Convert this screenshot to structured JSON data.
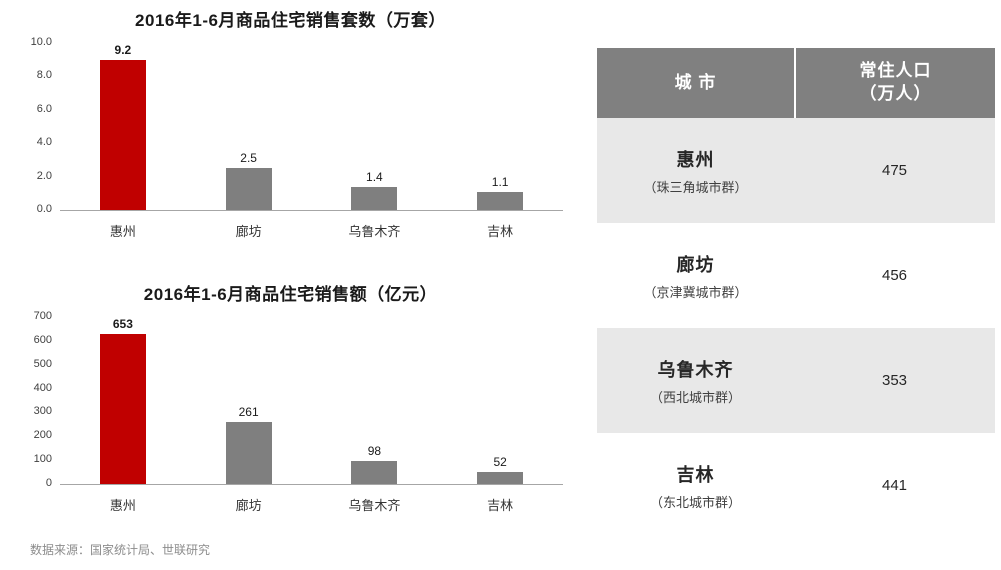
{
  "chart_data": [
    {
      "type": "bar",
      "title": "2016年1-6月商品住宅销售套数（万套）",
      "categories": [
        "惠州",
        "廊坊",
        "乌鲁木齐",
        "吉林"
      ],
      "values": [
        9.2,
        2.5,
        1.4,
        1.1
      ],
      "value_labels": [
        "9.2",
        "2.5",
        "1.4",
        "1.1"
      ],
      "ylim": [
        0,
        10
      ],
      "yticks": [
        "10.0",
        "8.0",
        "6.0",
        "4.0",
        "2.0",
        "0.0"
      ],
      "bar_colors": [
        "#c00000",
        "#7f7f7f",
        "#7f7f7f",
        "#7f7f7f"
      ],
      "highlight_index": 0,
      "grid": false,
      "legend": "none"
    },
    {
      "type": "bar",
      "title": "2016年1-6月商品住宅销售额（亿元）",
      "categories": [
        "惠州",
        "廊坊",
        "乌鲁木齐",
        "吉林"
      ],
      "values": [
        653,
        261,
        98,
        52
      ],
      "value_labels": [
        "653",
        "261",
        "98",
        "52"
      ],
      "ylim": [
        0,
        700
      ],
      "yticks": [
        "700",
        "600",
        "500",
        "400",
        "300",
        "200",
        "100",
        "0"
      ],
      "bar_colors": [
        "#c00000",
        "#7f7f7f",
        "#7f7f7f",
        "#7f7f7f"
      ],
      "highlight_index": 0,
      "grid": false,
      "legend": "none"
    }
  ],
  "table": {
    "header_city": "城 市",
    "header_pop_line1": "常住人口",
    "header_pop_line2": "（万人）",
    "rows": [
      {
        "city": "惠州",
        "group": "（珠三角城市群）",
        "population": "475"
      },
      {
        "city": "廊坊",
        "group": "（京津冀城市群）",
        "population": "456"
      },
      {
        "city": "乌鲁木齐",
        "group": "（西北城市群）",
        "population": "353"
      },
      {
        "city": "吉林",
        "group": "（东北城市群）",
        "population": "441"
      }
    ]
  },
  "footer": {
    "source": "数据来源：国家统计局、世联研究"
  },
  "colors": {
    "accent_red": "#c00000",
    "bar_gray": "#7f7f7f",
    "header_gray": "#808080",
    "row_alt_gray": "#e8e8e8"
  }
}
